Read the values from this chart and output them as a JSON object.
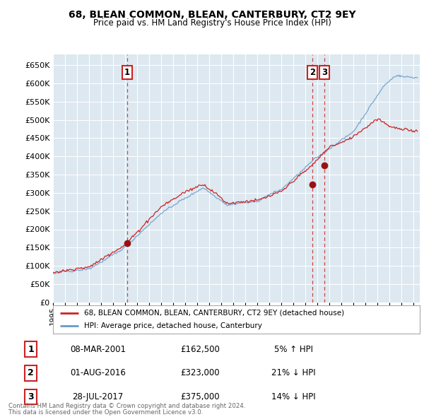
{
  "title": "68, BLEAN COMMON, BLEAN, CANTERBURY, CT2 9EY",
  "subtitle": "Price paid vs. HM Land Registry's House Price Index (HPI)",
  "ylim": [
    0,
    680000
  ],
  "yticks": [
    0,
    50000,
    100000,
    150000,
    200000,
    250000,
    300000,
    350000,
    400000,
    450000,
    500000,
    550000,
    600000,
    650000
  ],
  "xlim_start": 1995.0,
  "xlim_end": 2025.5,
  "background_color": "#ffffff",
  "plot_bg_color": "#dde8f0",
  "grid_color": "#ffffff",
  "hpi_line_color": "#6699cc",
  "price_line_color": "#cc2222",
  "sale_marker_color": "#991111",
  "vline_color": "#cc3333",
  "transactions": [
    {
      "label": "1",
      "date_num": 2001.18,
      "price": 162500,
      "pct": "5%",
      "direction": "↑",
      "date_str": "08-MAR-2001"
    },
    {
      "label": "2",
      "date_num": 2016.58,
      "price": 323000,
      "pct": "21%",
      "direction": "↓",
      "date_str": "01-AUG-2016"
    },
    {
      "label": "3",
      "date_num": 2017.57,
      "price": 375000,
      "pct": "14%",
      "direction": "↓",
      "date_str": "28-JUL-2017"
    }
  ],
  "legend_line1": "68, BLEAN COMMON, BLEAN, CANTERBURY, CT2 9EY (detached house)",
  "legend_line2": "HPI: Average price, detached house, Canterbury",
  "footer1": "Contains HM Land Registry data © Crown copyright and database right 2024.",
  "footer2": "This data is licensed under the Open Government Licence v3.0."
}
